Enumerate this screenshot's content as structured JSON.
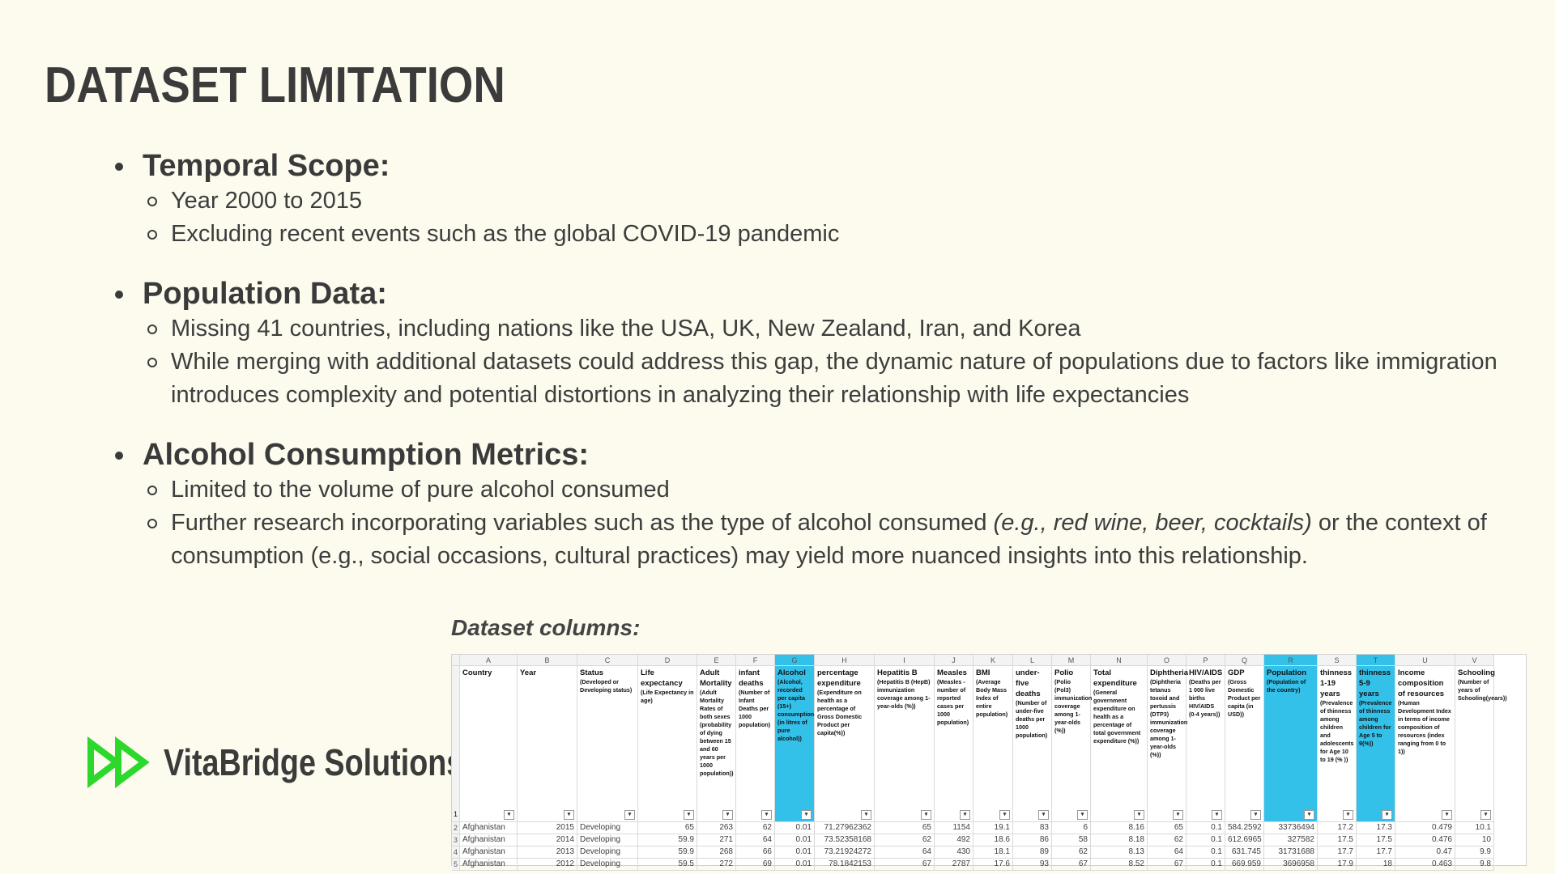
{
  "title": "DATASET LIMITATION",
  "sections": [
    {
      "heading": "Temporal Scope:",
      "items": [
        "Year 2000 to 2015",
        "Excluding recent events such as the global COVID-19 pandemic"
      ]
    },
    {
      "heading": "Population Data:",
      "items": [
        "Missing 41 countries, including nations like the USA, UK, New Zealand, Iran, and Korea",
        "While merging with additional datasets could address this gap, the dynamic nature of populations due to factors like immigration introduces complexity and potential distortions in analyzing their relationship with life expectancies"
      ]
    },
    {
      "heading": "Alcohol Consumption Metrics:",
      "items": [
        "Limited to the volume of pure alcohol consumed",
        "Further research incorporating variables such as the type of alcohol consumed (e.g., red wine, beer, cocktails) or the context of consumption (e.g., social occasions, cultural practices) may yield more nuanced insights into this relationship."
      ]
    }
  ],
  "caption": "Dataset columns:",
  "logo": {
    "text": "VitaBridge Solutions",
    "icon": "double-play-icon",
    "color": "#2bd82b"
  },
  "sheet": {
    "row1": "1",
    "highlight": "#33c1ea",
    "columns": [
      {
        "letter": "A",
        "title": "Country",
        "desc": ""
      },
      {
        "letter": "B",
        "title": "Year",
        "desc": ""
      },
      {
        "letter": "C",
        "title": "Status",
        "desc": "(Developed or Developing status)"
      },
      {
        "letter": "D",
        "title": "Life expectancy",
        "desc": "(Life Expectancy in age)"
      },
      {
        "letter": "E",
        "title": "Adult Mortality",
        "desc": "(Adult Mortality Rates of both sexes (probability of dying between 15 and 60 years per 1000 population))"
      },
      {
        "letter": "F",
        "title": "infant deaths",
        "desc": "(Number of Infant Deaths per 1000 population)"
      },
      {
        "letter": "G",
        "title": "Alcohol",
        "desc": "(Alcohol, recorded per capita (15+) consumption (in litres of pure alcohol))"
      },
      {
        "letter": "H",
        "title": "percentage expenditure",
        "desc": "(Expenditure on health as a percentage of Gross Domestic Product per capita(%))"
      },
      {
        "letter": "I",
        "title": "Hepatitis B",
        "desc": "(Hepatitis B (HepB) immunization coverage among 1-year-olds (%))"
      },
      {
        "letter": "J",
        "title": "Measles",
        "desc": "(Measles - number of reported cases per 1000 population)"
      },
      {
        "letter": "K",
        "title": "BMI",
        "desc": "(Average Body Mass Index of entire population)"
      },
      {
        "letter": "L",
        "title": "under-five deaths",
        "desc": "(Number of under-five deaths per 1000 population)"
      },
      {
        "letter": "M",
        "title": "Polio",
        "desc": "(Polio (Pol3) immunization coverage among 1-year-olds (%))"
      },
      {
        "letter": "N",
        "title": "Total expenditure",
        "desc": "(General government expenditure on health as a percentage of total government expenditure (%))"
      },
      {
        "letter": "O",
        "title": "Diphtheria",
        "desc": "(Diphtheria tetanus toxoid and pertussis (DTP3) immunization coverage among 1-year-olds (%))"
      },
      {
        "letter": "P",
        "title": "HIV/AIDS",
        "desc": "(Deaths per 1 000 live births HIV/AIDS (0-4 years))"
      },
      {
        "letter": "Q",
        "title": "GDP",
        "desc": "(Gross Domestic Product per capita (in USD))"
      },
      {
        "letter": "R",
        "title": "Population",
        "desc": "(Population of the country)"
      },
      {
        "letter": "S",
        "title": "thinness 1-19 years",
        "desc": "(Prevalence of thinness among children and adolescents for Age 10 to 19 (% ))"
      },
      {
        "letter": "T",
        "title": "thinness 5-9 years",
        "desc": "(Prevalence of thinness among children for Age 5 to 9(%))"
      },
      {
        "letter": "U",
        "title": "Income composition of resources",
        "desc": "(Human Development Index in terms of income composition of resources (index ranging from 0 to 1))"
      },
      {
        "letter": "V",
        "title": "Schooling",
        "desc": "(Number of years of Schooling(years))"
      }
    ],
    "rows": [
      [
        "2",
        "Afghanistan",
        "2015",
        "Developing",
        "65",
        "263",
        "62",
        "0.01",
        "71.27962362",
        "65",
        "1154",
        "19.1",
        "83",
        "6",
        "8.16",
        "65",
        "0.1",
        "584.2592",
        "33736494",
        "17.2",
        "17.3",
        "0.479",
        "10.1"
      ],
      [
        "3",
        "Afghanistan",
        "2014",
        "Developing",
        "59.9",
        "271",
        "64",
        "0.01",
        "73.52358168",
        "62",
        "492",
        "18.6",
        "86",
        "58",
        "8.18",
        "62",
        "0.1",
        "612.6965",
        "327582",
        "17.5",
        "17.5",
        "0.476",
        "10"
      ],
      [
        "4",
        "Afghanistan",
        "2013",
        "Developing",
        "59.9",
        "268",
        "66",
        "0.01",
        "73.21924272",
        "64",
        "430",
        "18.1",
        "89",
        "62",
        "8.13",
        "64",
        "0.1",
        "631.745",
        "31731688",
        "17.7",
        "17.7",
        "0.47",
        "9.9"
      ],
      [
        "5",
        "Afghanistan",
        "2012",
        "Developing",
        "59.5",
        "272",
        "69",
        "0.01",
        "78.1842153",
        "67",
        "2787",
        "17.6",
        "93",
        "67",
        "8.52",
        "67",
        "0.1",
        "669.959",
        "3696958",
        "17.9",
        "18",
        "0.463",
        "9.8"
      ]
    ]
  }
}
